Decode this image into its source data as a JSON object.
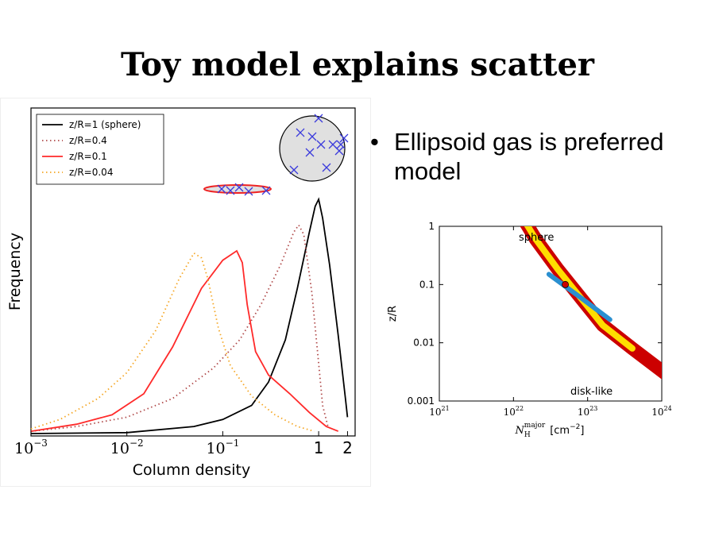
{
  "slide": {
    "title": "Toy model explains scatter",
    "bullets": [
      "Ellipsoid gas is preferred model"
    ]
  },
  "chart_data": [
    {
      "type": "line",
      "xlabel": "Column density",
      "ylabel": "Frequency",
      "x_scale": "log",
      "xlim": [
        0.001,
        2.4
      ],
      "x_ticks": [
        {
          "label": "10",
          "exp": "−3"
        },
        {
          "label": "10",
          "exp": "−2"
        },
        {
          "label": "10",
          "exp": "−1"
        },
        {
          "label": "1",
          "exp": ""
        },
        {
          "label": "2",
          "exp": ""
        }
      ],
      "legend": {
        "placement": "top-left"
      },
      "series": [
        {
          "name": "z/R=1 (sphere)",
          "color": "#000000",
          "style": "solid",
          "x": [
            0.001,
            0.01,
            0.05,
            0.1,
            0.2,
            0.3,
            0.45,
            0.6,
            0.8,
            0.92,
            1.0,
            1.1,
            1.3,
            1.6,
            1.9,
            2.0
          ],
          "y": [
            0.0,
            0.004,
            0.03,
            0.06,
            0.12,
            0.22,
            0.4,
            0.62,
            0.86,
            0.97,
            1.0,
            0.92,
            0.72,
            0.42,
            0.15,
            0.07
          ]
        },
        {
          "name": "z/R=0.4",
          "color": "#b04a4a",
          "style": "dotted",
          "x": [
            0.001,
            0.003,
            0.01,
            0.03,
            0.08,
            0.15,
            0.25,
            0.4,
            0.55,
            0.62,
            0.7,
            0.85,
            1.0,
            1.1,
            1.25
          ],
          "y": [
            0.01,
            0.03,
            0.07,
            0.15,
            0.28,
            0.4,
            0.55,
            0.72,
            0.86,
            0.89,
            0.85,
            0.6,
            0.3,
            0.12,
            0.03
          ]
        },
        {
          "name": "z/R=0.1",
          "color": "#ff2a2a",
          "style": "solid",
          "x": [
            0.001,
            0.003,
            0.007,
            0.015,
            0.03,
            0.06,
            0.1,
            0.14,
            0.16,
            0.18,
            0.22,
            0.3,
            0.5,
            0.8,
            1.2,
            1.6
          ],
          "y": [
            0.01,
            0.04,
            0.08,
            0.17,
            0.37,
            0.62,
            0.74,
            0.78,
            0.73,
            0.55,
            0.35,
            0.25,
            0.17,
            0.09,
            0.03,
            0.01
          ]
        },
        {
          "name": "z/R=0.04",
          "color": "#f5a623",
          "style": "dotted",
          "x": [
            0.001,
            0.002,
            0.005,
            0.01,
            0.02,
            0.035,
            0.05,
            0.06,
            0.07,
            0.09,
            0.12,
            0.2,
            0.35,
            0.6,
            0.9
          ],
          "y": [
            0.02,
            0.06,
            0.15,
            0.26,
            0.44,
            0.66,
            0.77,
            0.75,
            0.66,
            0.45,
            0.29,
            0.16,
            0.08,
            0.03,
            0.01
          ]
        }
      ]
    },
    {
      "type": "heatmap",
      "xlabel_main": "N",
      "xlabel_sub": "H",
      "xlabel_sup": "major",
      "xlabel_unit": "[cm",
      "xlabel_unit_exp": "−2",
      "xlabel_close": "]",
      "ylabel": "z/R",
      "x_scale": "log",
      "y_scale": "log",
      "xlim": [
        1e+21,
        1e+24
      ],
      "ylim": [
        0.001,
        1
      ],
      "x_ticks": [
        {
          "label": "10",
          "exp": "21"
        },
        {
          "label": "10",
          "exp": "22"
        },
        {
          "label": "10",
          "exp": "23"
        },
        {
          "label": "10",
          "exp": "24"
        }
      ],
      "y_ticks": [
        "1",
        "0.1",
        "0.01",
        "0.001"
      ],
      "annotations": [
        "sphere",
        "disk-like"
      ],
      "colors": {
        "outer": "#cc0000",
        "mid": "#ffdd00",
        "inner": "#2a8fd0"
      },
      "best_fit_point": {
        "nh": 5e+22,
        "zr": 0.1
      }
    }
  ]
}
